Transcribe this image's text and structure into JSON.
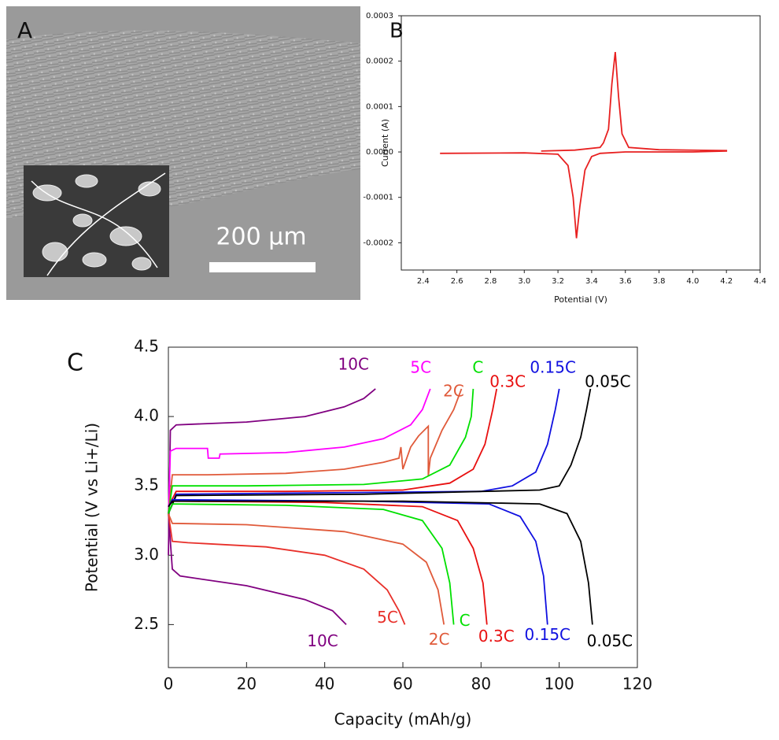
{
  "image_panel": {
    "label": "A",
    "scale_bar": "200 μm"
  },
  "chart_data": [
    {
      "type": "line",
      "label": "B",
      "x_label": "Potential (V)",
      "y_label": "Current (A)",
      "xlim": [
        2.27,
        4.4
      ],
      "xticks": [
        2.4,
        2.6,
        2.8,
        {
          "value": 3.0,
          "label": "3.0"
        },
        3.2,
        3.4,
        3.6,
        3.8,
        {
          "value": 4.0,
          "label": "4.0"
        },
        4.2,
        4.4
      ],
      "ylim": [
        -0.00026,
        0.0003
      ],
      "yticks": [
        {
          "value": -0.0002,
          "label": "-0.0002"
        },
        {
          "value": -0.0001,
          "label": "-0.0001"
        },
        {
          "value": 0,
          "label": "0.0000"
        },
        {
          "value": 0.0001,
          "label": "0.0001"
        },
        {
          "value": 0.0002,
          "label": "0.0002"
        },
        {
          "value": 0.0003,
          "label": "0.0003"
        }
      ],
      "series": [
        {
          "color": "#e82020",
          "x": [
            2.5,
            3.0,
            3.2,
            3.26,
            3.29,
            3.31,
            3.33,
            3.36,
            3.4,
            3.45,
            3.6,
            3.85,
            4.0,
            4.2,
            4.2,
            3.8,
            3.62,
            3.58,
            3.56,
            3.54,
            3.52,
            3.5,
            3.47,
            3.45,
            3.3,
            3.1
          ],
          "values": [
            -3e-06,
            -2e-06,
            -5e-06,
            -3e-05,
            -0.0001,
            -0.00019,
            -0.00012,
            -4e-05,
            -1e-05,
            -3e-06,
            0,
            0,
            0,
            2e-06,
            3e-06,
            5e-06,
            1e-05,
            4e-05,
            0.00012,
            0.00022,
            0.00015,
            5e-05,
            2e-05,
            1e-05,
            4e-06,
            2e-06
          ]
        }
      ]
    },
    {
      "type": "line",
      "label": "C",
      "x_label": "Capacity (mAh/g)",
      "y_label": "Potential (V vs Li+/Li)",
      "xlim": [
        0,
        120
      ],
      "xticks": [
        0,
        20,
        40,
        60,
        80,
        100,
        120
      ],
      "ylim": [
        2.19,
        4.5
      ],
      "yticks": [
        2.5,
        {
          "value": 3.0,
          "label": "3.0"
        },
        3.5,
        {
          "value": 4.0,
          "label": "4.0"
        },
        4.5
      ],
      "series": [
        {
          "name": "10C",
          "color": "#800080",
          "x": [
            0,
            0.5,
            2,
            20,
            35,
            45,
            50,
            53
          ],
          "values": [
            3.0,
            3.9,
            3.94,
            3.96,
            4.0,
            4.07,
            4.13,
            4.2
          ]
        },
        {
          "name": "5C",
          "color": "#ff00ff",
          "x": [
            0,
            0.5,
            2,
            10,
            10.2,
            13,
            13.2,
            30,
            45,
            55,
            62,
            65,
            67
          ],
          "values": [
            3.3,
            3.75,
            3.77,
            3.77,
            3.7,
            3.7,
            3.73,
            3.74,
            3.78,
            3.84,
            3.94,
            4.05,
            4.2
          ]
        },
        {
          "name": "2C",
          "color": "#e05a3a",
          "x": [
            0,
            1,
            10,
            30,
            45,
            55,
            59,
            59.5,
            60,
            62,
            64,
            66.5,
            66.5,
            67,
            70,
            73,
            75
          ],
          "values": [
            3.3,
            3.58,
            3.58,
            3.59,
            3.62,
            3.67,
            3.7,
            3.78,
            3.62,
            3.78,
            3.86,
            3.93,
            3.57,
            3.7,
            3.9,
            4.05,
            4.2
          ]
        },
        {
          "name": "C",
          "color": "#00e000",
          "x": [
            0,
            1,
            20,
            50,
            65,
            72,
            76,
            77.5,
            78
          ],
          "values": [
            3.3,
            3.5,
            3.5,
            3.51,
            3.55,
            3.65,
            3.85,
            4.0,
            4.2
          ]
        },
        {
          "name": "0.3C",
          "color": "#e81010",
          "x": [
            0,
            2,
            30,
            60,
            72,
            78,
            81,
            83,
            84
          ],
          "values": [
            3.35,
            3.46,
            3.46,
            3.47,
            3.52,
            3.62,
            3.8,
            4.05,
            4.2
          ]
        },
        {
          "name": "0.15C",
          "color": "#1010e0",
          "x": [
            0,
            2,
            40,
            80,
            88,
            94,
            97,
            99,
            100
          ],
          "values": [
            3.3,
            3.44,
            3.45,
            3.46,
            3.5,
            3.6,
            3.8,
            4.05,
            4.2
          ]
        },
        {
          "name": "0.05C",
          "color": "#000000",
          "x": [
            0,
            2,
            50,
            95,
            100,
            103,
            105.5,
            107,
            108
          ],
          "values": [
            3.3,
            3.43,
            3.44,
            3.47,
            3.5,
            3.65,
            3.85,
            4.05,
            4.2
          ]
        },
        {
          "name": "10C",
          "color": "#800080",
          "x": [
            0,
            1,
            3,
            20,
            35,
            42,
            45.5
          ],
          "values": [
            3.3,
            2.9,
            2.85,
            2.78,
            2.68,
            2.6,
            2.5
          ]
        },
        {
          "name": "5C",
          "color": "#e8302a",
          "x": [
            0,
            1,
            5,
            25,
            40,
            50,
            56,
            59,
            60.5
          ],
          "values": [
            3.3,
            3.1,
            3.09,
            3.06,
            3.0,
            2.9,
            2.75,
            2.6,
            2.5
          ]
        },
        {
          "name": "2C",
          "color": "#e05a3a",
          "x": [
            0,
            1,
            20,
            45,
            60,
            66,
            69,
            70.5
          ],
          "values": [
            3.3,
            3.23,
            3.22,
            3.17,
            3.08,
            2.95,
            2.75,
            2.5
          ]
        },
        {
          "name": "C",
          "color": "#00e000",
          "x": [
            0,
            1,
            30,
            55,
            65,
            70,
            72,
            73
          ],
          "values": [
            3.3,
            3.37,
            3.36,
            3.33,
            3.25,
            3.05,
            2.8,
            2.5
          ]
        },
        {
          "name": "0.3C",
          "color": "#e81010",
          "x": [
            0,
            1,
            40,
            65,
            74,
            78,
            80.5,
            81.5
          ],
          "values": [
            3.35,
            3.39,
            3.38,
            3.35,
            3.25,
            3.05,
            2.8,
            2.5
          ]
        },
        {
          "name": "0.15C",
          "color": "#1010e0",
          "x": [
            0,
            1,
            50,
            82,
            90,
            94,
            96,
            97
          ],
          "values": [
            3.35,
            3.4,
            3.39,
            3.37,
            3.28,
            3.1,
            2.85,
            2.5
          ]
        },
        {
          "name": "0.05C",
          "color": "#000000",
          "x": [
            0,
            1,
            60,
            95,
            102,
            105.5,
            107.5,
            108.5
          ],
          "values": [
            3.35,
            3.39,
            3.39,
            3.37,
            3.3,
            3.1,
            2.8,
            2.5
          ]
        }
      ]
    }
  ]
}
